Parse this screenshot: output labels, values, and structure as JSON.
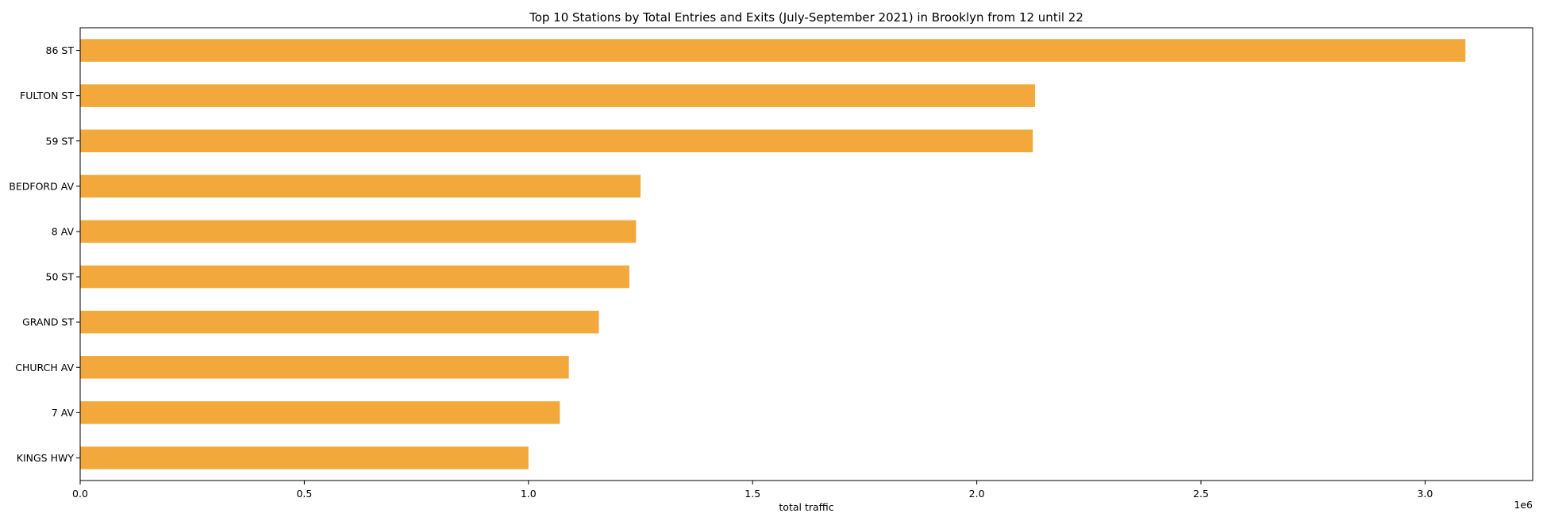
{
  "chart_data": {
    "type": "bar",
    "orientation": "horizontal",
    "title": "Top 10 Stations by Total Entries and Exits (July-September 2021) in Brooklyn from 12 until 22",
    "xlabel": "total traffic",
    "ylabel": "",
    "x_offset_label": "1e6",
    "xlim": [
      0,
      3.24
    ],
    "x_ticks": [
      0.0,
      0.5,
      1.0,
      1.5,
      2.0,
      2.5,
      3.0
    ],
    "x_tick_labels": [
      "0.0",
      "0.5",
      "1.0",
      "1.5",
      "2.0",
      "2.5",
      "3.0"
    ],
    "categories": [
      "86 ST",
      "FULTON ST",
      "59 ST",
      "BEDFORD AV",
      "8 AV",
      "50 ST",
      "GRAND ST",
      "CHURCH AV",
      "7 AV",
      "KINGS HWY"
    ],
    "values": [
      3.09,
      2.13,
      2.125,
      1.25,
      1.24,
      1.225,
      1.157,
      1.09,
      1.07,
      1.0
    ],
    "bar_color": "#F3A83C",
    "grid": false,
    "legend": "none"
  }
}
